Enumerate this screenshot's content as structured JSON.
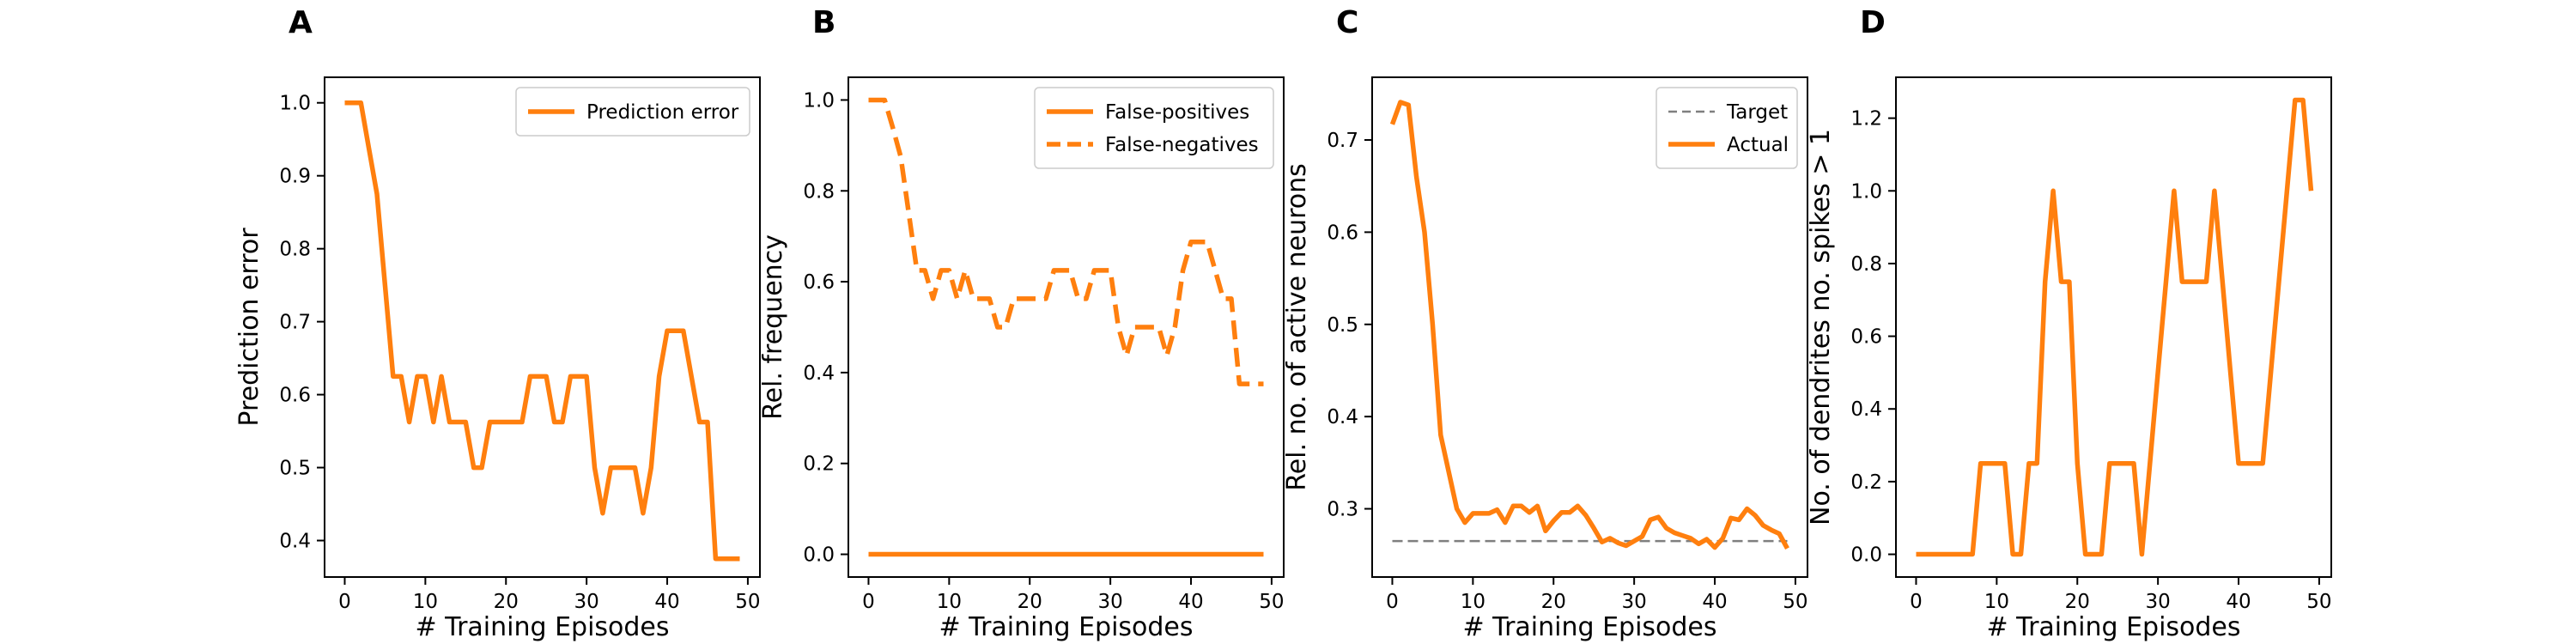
{
  "chart_data": [
    {
      "panel": "A",
      "type": "line",
      "xlabel": "# Training Episodes",
      "ylabel": "Prediction error",
      "xlim": [
        -2.5,
        51.5
      ],
      "ylim": [
        0.35,
        1.035
      ],
      "xticks": [
        0,
        10,
        20,
        30,
        40,
        50
      ],
      "yticks": [
        0.4,
        0.5,
        0.6,
        0.7,
        0.8,
        0.9,
        1.0
      ],
      "ytick_labels": [
        "0.4",
        "0.5",
        "0.6",
        "0.7",
        "0.8",
        "0.9",
        "1.0"
      ],
      "legend_position": "top-right",
      "x": [
        0,
        1,
        2,
        3,
        4,
        5,
        6,
        7,
        8,
        9,
        10,
        11,
        12,
        13,
        14,
        15,
        16,
        17,
        18,
        19,
        20,
        21,
        22,
        23,
        24,
        25,
        26,
        27,
        28,
        29,
        30,
        31,
        32,
        33,
        34,
        35,
        36,
        37,
        38,
        39,
        40,
        41,
        42,
        43,
        44,
        45,
        46,
        47,
        48,
        49
      ],
      "series": [
        {
          "name": "Prediction error",
          "color": "#ff7f0e",
          "style": "solid",
          "values": [
            1.0,
            1.0,
            1.0,
            0.9375,
            0.875,
            0.75,
            0.625,
            0.625,
            0.5625,
            0.625,
            0.625,
            0.5625,
            0.625,
            0.5625,
            0.5625,
            0.5625,
            0.5,
            0.5,
            0.5625,
            0.5625,
            0.5625,
            0.5625,
            0.5625,
            0.625,
            0.625,
            0.625,
            0.5625,
            0.5625,
            0.625,
            0.625,
            0.625,
            0.5,
            0.4375,
            0.5,
            0.5,
            0.5,
            0.5,
            0.4375,
            0.5,
            0.625,
            0.6875,
            0.6875,
            0.6875,
            0.625,
            0.5625,
            0.5625,
            0.375,
            0.375,
            0.375,
            0.375
          ]
        }
      ]
    },
    {
      "panel": "B",
      "type": "line",
      "xlabel": "# Training Episodes",
      "ylabel": "Rel. frequency",
      "xlim": [
        -2.5,
        51.5
      ],
      "ylim": [
        -0.05,
        1.05
      ],
      "xticks": [
        0,
        10,
        20,
        30,
        40,
        50
      ],
      "yticks": [
        0.0,
        0.2,
        0.4,
        0.6,
        0.8,
        1.0
      ],
      "ytick_labels": [
        "0.0",
        "0.2",
        "0.4",
        "0.6",
        "0.8",
        "1.0"
      ],
      "legend_position": "top-right",
      "x": [
        0,
        1,
        2,
        3,
        4,
        5,
        6,
        7,
        8,
        9,
        10,
        11,
        12,
        13,
        14,
        15,
        16,
        17,
        18,
        19,
        20,
        21,
        22,
        23,
        24,
        25,
        26,
        27,
        28,
        29,
        30,
        31,
        32,
        33,
        34,
        35,
        36,
        37,
        38,
        39,
        40,
        41,
        42,
        43,
        44,
        45,
        46,
        47,
        48,
        49
      ],
      "series": [
        {
          "name": "False-positives",
          "color": "#ff7f0e",
          "style": "solid",
          "values": [
            0,
            0,
            0,
            0,
            0,
            0,
            0,
            0,
            0,
            0,
            0,
            0,
            0,
            0,
            0,
            0,
            0,
            0,
            0,
            0,
            0,
            0,
            0,
            0,
            0,
            0,
            0,
            0,
            0,
            0,
            0,
            0,
            0,
            0,
            0,
            0,
            0,
            0,
            0,
            0,
            0,
            0,
            0,
            0,
            0,
            0,
            0,
            0,
            0,
            0
          ]
        },
        {
          "name": "False-negatives",
          "color": "#ff7f0e",
          "style": "dashed",
          "values": [
            1.0,
            1.0,
            1.0,
            0.94,
            0.875,
            0.75,
            0.625,
            0.625,
            0.5625,
            0.625,
            0.625,
            0.5625,
            0.625,
            0.5625,
            0.5625,
            0.5625,
            0.5,
            0.5,
            0.5625,
            0.5625,
            0.5625,
            0.5625,
            0.5625,
            0.625,
            0.625,
            0.625,
            0.5625,
            0.5625,
            0.625,
            0.625,
            0.625,
            0.5,
            0.4375,
            0.5,
            0.5,
            0.5,
            0.5,
            0.4375,
            0.5,
            0.625,
            0.6875,
            0.6875,
            0.6875,
            0.625,
            0.5625,
            0.5625,
            0.375,
            0.375,
            0.375,
            0.375
          ]
        }
      ]
    },
    {
      "panel": "C",
      "type": "line",
      "xlabel": "# Training Episodes",
      "ylabel": "Rel. no. of active neurons",
      "xlim": [
        -2.5,
        51.5
      ],
      "ylim": [
        0.226,
        0.768
      ],
      "xticks": [
        0,
        10,
        20,
        30,
        40,
        50
      ],
      "yticks": [
        0.3,
        0.4,
        0.5,
        0.6,
        0.7
      ],
      "ytick_labels": [
        "0.3",
        "0.4",
        "0.5",
        "0.6",
        "0.7"
      ],
      "legend_position": "top-right",
      "x": [
        0,
        1,
        2,
        3,
        4,
        5,
        6,
        7,
        8,
        9,
        10,
        11,
        12,
        13,
        14,
        15,
        16,
        17,
        18,
        19,
        20,
        21,
        22,
        23,
        24,
        25,
        26,
        27,
        28,
        29,
        30,
        31,
        32,
        33,
        34,
        35,
        36,
        37,
        38,
        39,
        40,
        41,
        42,
        43,
        44,
        45,
        46,
        47,
        48,
        49
      ],
      "series": [
        {
          "name": "Target",
          "color": "#7f7f7f",
          "style": "dashed",
          "values": [
            0.265,
            0.265,
            0.265,
            0.265,
            0.265,
            0.265,
            0.265,
            0.265,
            0.265,
            0.265,
            0.265,
            0.265,
            0.265,
            0.265,
            0.265,
            0.265,
            0.265,
            0.265,
            0.265,
            0.265,
            0.265,
            0.265,
            0.265,
            0.265,
            0.265,
            0.265,
            0.265,
            0.265,
            0.265,
            0.265,
            0.265,
            0.265,
            0.265,
            0.265,
            0.265,
            0.265,
            0.265,
            0.265,
            0.265,
            0.265,
            0.265,
            0.265,
            0.265,
            0.265,
            0.265,
            0.265,
            0.265,
            0.265,
            0.265,
            0.265
          ]
        },
        {
          "name": "Actual",
          "color": "#ff7f0e",
          "style": "solid",
          "values": [
            0.717,
            0.741,
            0.738,
            0.66,
            0.6,
            0.5,
            0.38,
            0.34,
            0.3,
            0.285,
            0.295,
            0.295,
            0.295,
            0.299,
            0.285,
            0.303,
            0.303,
            0.296,
            0.303,
            0.276,
            0.287,
            0.296,
            0.296,
            0.303,
            0.293,
            0.279,
            0.264,
            0.268,
            0.263,
            0.26,
            0.265,
            0.27,
            0.288,
            0.291,
            0.279,
            0.274,
            0.271,
            0.268,
            0.262,
            0.267,
            0.258,
            0.268,
            0.29,
            0.288,
            0.3,
            0.293,
            0.282,
            0.277,
            0.273,
            0.257
          ]
        }
      ]
    },
    {
      "panel": "D",
      "type": "line",
      "xlabel": "# Training Episodes",
      "ylabel": "No. of dendrites no. spikes > 1",
      "xlim": [
        -2.5,
        51.5
      ],
      "ylim": [
        -0.0625,
        1.3125
      ],
      "xticks": [
        0,
        10,
        20,
        30,
        40,
        50
      ],
      "yticks": [
        0.0,
        0.2,
        0.4,
        0.6,
        0.8,
        1.0,
        1.2
      ],
      "ytick_labels": [
        "0.0",
        "0.2",
        "0.4",
        "0.6",
        "0.8",
        "1.0",
        "1.2"
      ],
      "legend_position": "none",
      "x": [
        0,
        1,
        2,
        3,
        4,
        5,
        6,
        7,
        8,
        9,
        10,
        11,
        12,
        13,
        14,
        15,
        16,
        17,
        18,
        19,
        20,
        21,
        22,
        23,
        24,
        25,
        26,
        27,
        28,
        29,
        30,
        31,
        32,
        33,
        34,
        35,
        36,
        37,
        38,
        39,
        40,
        41,
        42,
        43,
        44,
        45,
        46,
        47,
        48,
        49
      ],
      "series": [
        {
          "color": "#ff7f0e",
          "style": "solid",
          "values": [
            0,
            0,
            0,
            0,
            0,
            0,
            0,
            0,
            0.25,
            0.25,
            0.25,
            0.25,
            0,
            0,
            0.25,
            0.25,
            0.75,
            1.0,
            0.75,
            0.75,
            0.25,
            0,
            0,
            0,
            0.25,
            0.25,
            0.25,
            0.25,
            0,
            0.25,
            0.5,
            0.75,
            1.0,
            0.75,
            0.75,
            0.75,
            0.75,
            1.0,
            0.75,
            0.5,
            0.25,
            0.25,
            0.25,
            0.25,
            0.5,
            0.75,
            1.0,
            1.25,
            1.25,
            1.0
          ]
        }
      ]
    }
  ]
}
